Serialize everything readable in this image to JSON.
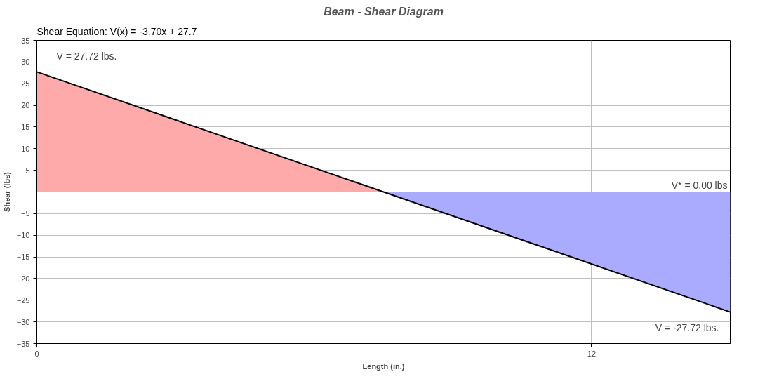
{
  "chart_data": {
    "type": "area",
    "title": "Beam - Shear Diagram",
    "xlabel": "Length (in.)",
    "ylabel": "Shear (lbs)",
    "xlim": [
      0,
      15
    ],
    "xticks": [
      0,
      12
    ],
    "ylim": [
      -35,
      35
    ],
    "yticks": [
      -35,
      -30,
      -25,
      -20,
      -15,
      -10,
      -5,
      {
        "value": 0,
        "label": null
      },
      5,
      10,
      15,
      20,
      25,
      30,
      35
    ],
    "grid": true,
    "series": [
      {
        "color": "#ffaaaa",
        "x": [
          0,
          7.5
        ],
        "values": [
          27.72,
          0
        ]
      },
      {
        "color": "#aaaaff",
        "x": [
          7.5,
          15
        ],
        "values": [
          0,
          -27.72
        ]
      },
      {
        "type": "line",
        "color": "#000000",
        "x": [
          0,
          15
        ],
        "values": [
          27.72,
          -27.72
        ]
      }
    ],
    "ref_lines": [
      {
        "axis": "y",
        "value": 0,
        "label": "V* = 0.00 lbs",
        "color": "#000000",
        "line_style": "dotted"
      }
    ],
    "annotations": [
      "Shear Equation:  V(x) = -3.70x + 27.7",
      {
        "text": "V = 27.72 lbs.",
        "x": 0,
        "y": 27.72
      },
      {
        "text": "V = -27.72 lbs.",
        "x": 15,
        "y": -27.72
      }
    ]
  }
}
